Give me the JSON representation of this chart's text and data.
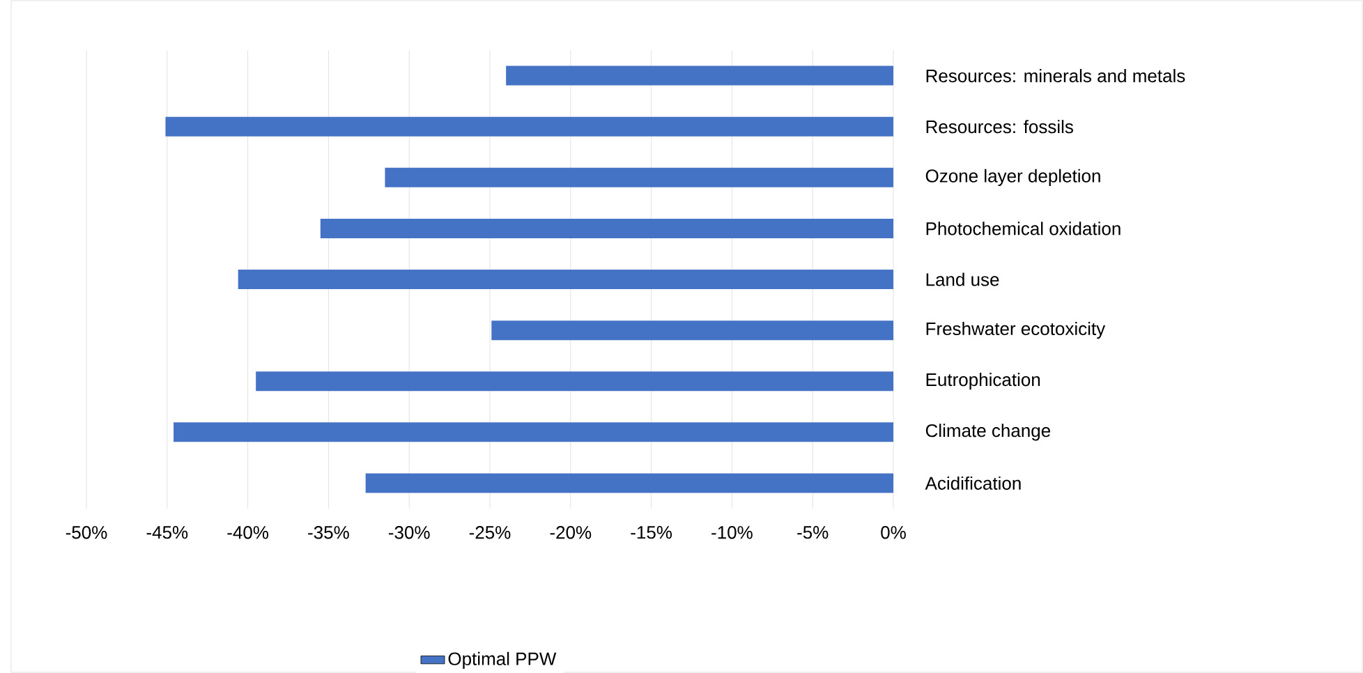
{
  "chart_data": {
    "type": "bar",
    "orientation": "horizontal",
    "categories": [
      "Resources: minerals and metals",
      "Resources: fossils",
      "Ozone layer depletion",
      "Photochemical oxidation",
      "Land use",
      "Freshwater ecotoxicity",
      "Eutrophication",
      "Climate change",
      "Acidification"
    ],
    "series": [
      {
        "name": "Optimal PPW",
        "color": "#4472c4",
        "values": [
          -24.0,
          -45.1,
          -31.5,
          -35.5,
          -40.6,
          -24.9,
          -39.5,
          -44.6,
          -32.7
        ]
      }
    ],
    "xlim": [
      -50,
      0
    ],
    "xticks": [
      {
        "value": -50,
        "label": "-50%"
      },
      {
        "value": -45,
        "label": "-45%"
      },
      {
        "value": -40,
        "label": "-40%"
      },
      {
        "value": -35,
        "label": "-35%"
      },
      {
        "value": -30,
        "label": "-30%"
      },
      {
        "value": -25,
        "label": "-25%"
      },
      {
        "value": -20,
        "label": "-20%"
      },
      {
        "value": -15,
        "label": "-15%"
      },
      {
        "value": -10,
        "label": "-10%"
      },
      {
        "value": -5,
        "label": "-5%"
      },
      {
        "value": 0,
        "label": "0%"
      }
    ],
    "grid": "x",
    "legend": "bottom"
  }
}
